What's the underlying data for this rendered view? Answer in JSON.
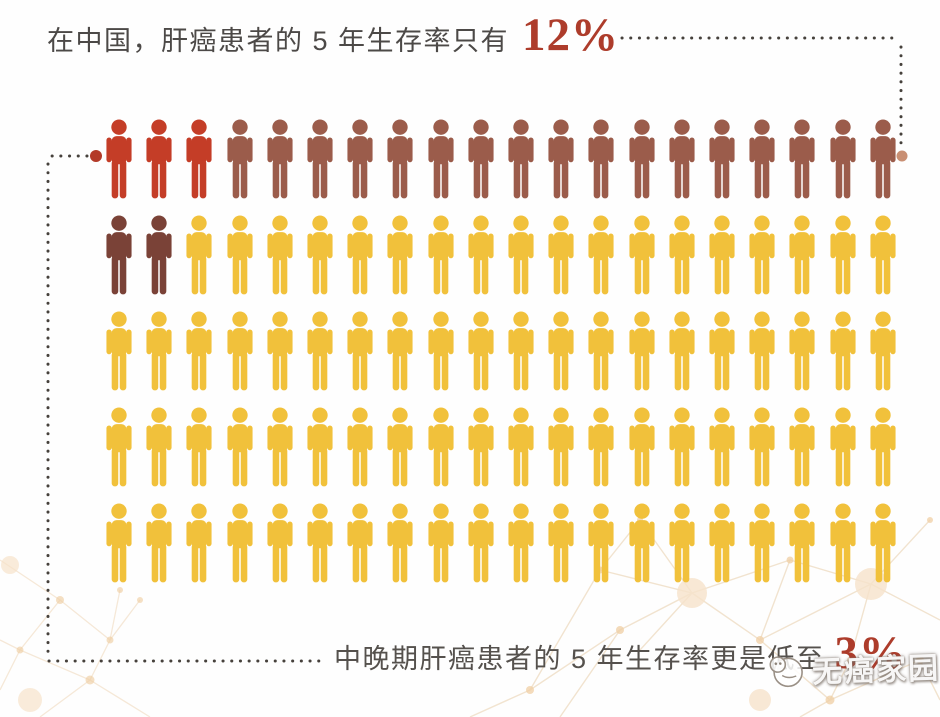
{
  "title": {
    "text": "在中国，肝癌患者的 5 年生存率只有",
    "highlight": "12%"
  },
  "caption": {
    "text": "中晚期肝癌患者的 5 年生存率更是低至",
    "highlight": "3%"
  },
  "watermark": {
    "text": "无癌家园",
    "icon": "dove-logo-icon"
  },
  "colors": {
    "title_text": "#4c4947",
    "highlight_red": "#ad3c2b",
    "dotted_line": "#46413c",
    "left_anchor_dot": "#b33a28",
    "right_anchor_dot": "#c98f73",
    "figure_red": "#c43d27",
    "figure_brown": "#9b5c4b",
    "figure_dark_brown": "#7a4237",
    "figure_yellow": "#f1c13b",
    "decor_line": "#e8cda9",
    "decor_node": "#f0cfa4"
  },
  "chart_data": {
    "type": "pictogram",
    "title": "在中国，肝癌患者的 5 年生存率只有 12%",
    "annotation": "中晚期肝癌患者的 5 年生存率更是低至 3%",
    "total_units": 100,
    "unit": "1 figure = 1% of liver cancer patients",
    "layout": {
      "rows": 5,
      "cols": 20
    },
    "values": {
      "five_year_survival_rate_pct": 12,
      "late_stage_five_year_survival_rate_pct": 3
    },
    "groups": [
      {
        "label": "bright-red figures (3% late-stage survivors)",
        "color": "#c43d27",
        "count": 3
      },
      {
        "label": "brown figures (remainder of highlighted group)",
        "color": "#9b5c4b",
        "count": 17
      },
      {
        "label": "dark-brown figures",
        "color": "#7a4237",
        "count": 2
      },
      {
        "label": "yellow figures (remaining patients)",
        "color": "#f1c13b",
        "count": 78
      }
    ]
  }
}
